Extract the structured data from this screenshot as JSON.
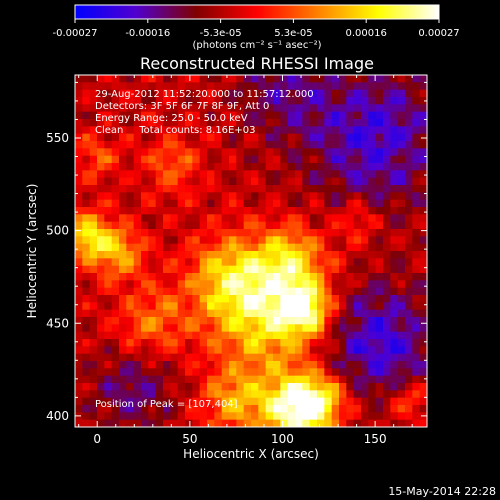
{
  "chart_data": {
    "type": "heatmap",
    "title": "Reconstructed RHESSI Image",
    "xlabel": "Heliocentric X (arcsec)",
    "ylabel": "Heliocentric Y (arcsec)",
    "xlim": [
      -12,
      178
    ],
    "ylim": [
      394,
      584
    ],
    "xticks": [
      "0",
      "50",
      "100",
      "150"
    ],
    "xtick_values": [
      0,
      50,
      100,
      150
    ],
    "yticks": [
      "400",
      "450",
      "500",
      "550"
    ],
    "ytick_values": [
      400,
      450,
      500,
      550
    ],
    "colorbar": {
      "range": [
        -0.00027,
        0.00027
      ],
      "ticks": [
        "-0.00027",
        "-0.00016",
        "-5.3e-05",
        "5.3e-05",
        "0.00016",
        "0.00027"
      ],
      "unit_label": "(photons cm⁻² s⁻¹ asec⁻²)",
      "colormap": [
        "#0000ff",
        "#5000d0",
        "#800000",
        "#ff0000",
        "#ff8000",
        "#ffff00",
        "#ffffff"
      ]
    },
    "annotations": [
      "29-Aug-2012 11:52:20.000 to 11:57:12.000",
      "Detectors: 3F 5F 6F 7F 8F 9F, Att 0",
      "Energy Range: 25.0 - 50.0 keV",
      "Clean     Total counts: 8.16E+03"
    ],
    "peak_label": "Position of Peak = [107,404]",
    "peak": [
      107,
      404
    ],
    "sources": [
      {
        "x": 107,
        "y": 404,
        "amp": 1.0,
        "sigma": 12
      },
      {
        "x": 122,
        "y": 408,
        "amp": 0.6,
        "sigma": 10
      },
      {
        "x": 75,
        "y": 408,
        "amp": 0.5,
        "sigma": 13
      },
      {
        "x": 95,
        "y": 455,
        "amp": 0.75,
        "sigma": 22
      },
      {
        "x": 112,
        "y": 458,
        "amp": 0.7,
        "sigma": 9
      },
      {
        "x": 72,
        "y": 475,
        "amp": 0.55,
        "sigma": 16
      },
      {
        "x": 105,
        "y": 485,
        "amp": 0.5,
        "sigma": 12
      },
      {
        "x": -5,
        "y": 497,
        "amp": 0.7,
        "sigma": 9
      },
      {
        "x": 12,
        "y": 488,
        "amp": 0.55,
        "sigma": 10
      },
      {
        "x": 30,
        "y": 450,
        "amp": 0.4,
        "sigma": 14
      },
      {
        "x": 40,
        "y": 535,
        "amp": 0.35,
        "sigma": 11
      },
      {
        "x": 0,
        "y": 540,
        "amp": 0.3,
        "sigma": 9
      },
      {
        "x": 140,
        "y": 505,
        "amp": 0.3,
        "sigma": 8
      },
      {
        "x": 168,
        "y": 408,
        "amp": 0.35,
        "sigma": 8
      }
    ],
    "negative_regions": [
      {
        "x": 150,
        "y": 440,
        "amp": 0.55,
        "sigma": 22
      },
      {
        "x": 150,
        "y": 550,
        "amp": 0.5,
        "sigma": 26
      },
      {
        "x": 20,
        "y": 415,
        "amp": 0.35,
        "sigma": 16
      },
      {
        "x": 100,
        "y": 575,
        "amp": 0.3,
        "sigma": 18
      }
    ]
  },
  "footer": {
    "timestamp": "15-May-2014 22:28"
  }
}
